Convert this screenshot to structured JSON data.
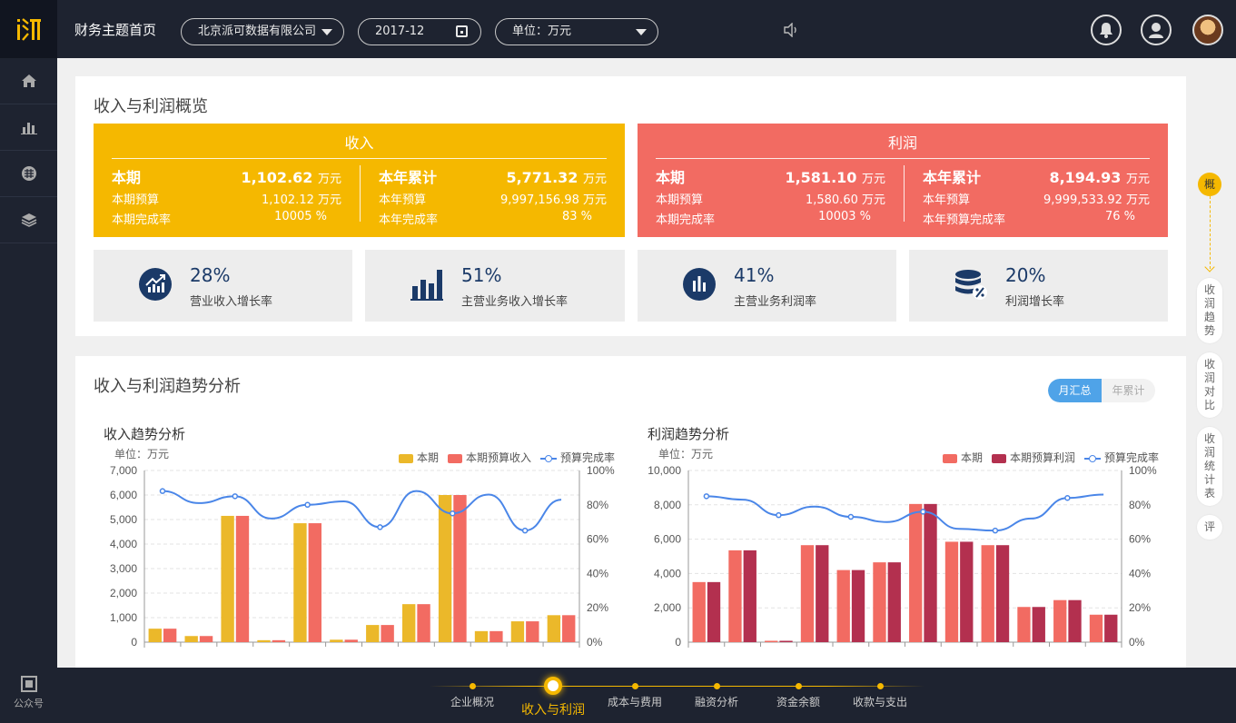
{
  "header": {
    "title": "财务主题首页",
    "company": "北京派可数据有限公司",
    "period": "2017-12",
    "unit": "单位：万元"
  },
  "sidebar": {
    "items": [
      "home-icon",
      "bar-chart-icon",
      "grid-icon",
      "layers-icon"
    ],
    "qr_label": "公众号"
  },
  "overview": {
    "title": "收入与利润概览",
    "income": {
      "head": "收入",
      "color": "#f5b800",
      "current_label": "本期",
      "current_value": "1,102.62",
      "unit": "万元",
      "budget_label": "本期预算",
      "budget_value": "1,102.12 万元",
      "rate_label": "本期完成率",
      "rate_value": "10005 %",
      "ytd_label": "本年累计",
      "ytd_value": "5,771.32",
      "ytd_budget_label": "本年预算",
      "ytd_budget_value": "9,997,156.98 万元",
      "ytd_rate_label": "本年完成率",
      "ytd_rate_value": "83 %"
    },
    "profit": {
      "head": "利润",
      "color": "#f26b62",
      "current_label": "本期",
      "current_value": "1,581.10",
      "unit": "万元",
      "budget_label": "本期预算",
      "budget_value": "1,580.60 万元",
      "rate_label": "本期完成率",
      "rate_value": "10003 %",
      "ytd_label": "本年累计",
      "ytd_value": "8,194.93",
      "ytd_budget_label": "本年预算",
      "ytd_budget_value": "9,999,533.92 万元",
      "ytd_rate_label": "本年预算完成率",
      "ytd_rate_value": "76 %"
    },
    "stats": [
      {
        "value": "28%",
        "label": "营业收入增长率",
        "icon": "trend-up-icon"
      },
      {
        "value": "51%",
        "label": "主营业务收入增长率",
        "icon": "bar-chart-icon"
      },
      {
        "value": "41%",
        "label": "主营业务利润率",
        "icon": "bar-circle-icon"
      },
      {
        "value": "20%",
        "label": "利润增长率",
        "icon": "coins-percent-icon"
      }
    ]
  },
  "trend": {
    "title": "收入与利润趋势分析",
    "toggle_on": "月汇总",
    "toggle_off": "年累计"
  },
  "chart_data": [
    {
      "type": "bar",
      "title": "收入趋势分析",
      "unit_label": "单位：万元",
      "ylim": [
        0,
        7000
      ],
      "y2lim": [
        0,
        100
      ],
      "yticks": [
        "0",
        "1,000",
        "2,000",
        "3,000",
        "4,000",
        "5,000",
        "6,000",
        "7,000"
      ],
      "y2ticks": [
        "0%",
        "20%",
        "40%",
        "60%",
        "80%",
        "100%"
      ],
      "colors": [
        "#ebb82a",
        "#f26b62",
        "#4a86e8"
      ],
      "series": [
        {
          "name": "本期",
          "values": [
            550,
            250,
            5150,
            80,
            4850,
            100,
            700,
            1550,
            6000,
            450,
            850,
            1100
          ]
        },
        {
          "name": "本期预算收入",
          "values": [
            550,
            250,
            5150,
            80,
            4850,
            100,
            700,
            1550,
            6000,
            450,
            850,
            1100
          ]
        },
        {
          "name": "预算完成率",
          "axis": "right",
          "values": [
            88,
            81,
            85,
            72,
            80,
            82,
            67,
            88,
            75,
            86,
            65,
            83
          ]
        }
      ]
    },
    {
      "type": "bar",
      "title": "利润趋势分析",
      "unit_label": "单位：万元",
      "ylim": [
        0,
        10000
      ],
      "y2lim": [
        0,
        100
      ],
      "yticks": [
        "0",
        "2,000",
        "4,000",
        "6,000",
        "8,000",
        "10,000"
      ],
      "y2ticks": [
        "0%",
        "20%",
        "40%",
        "60%",
        "80%",
        "100%"
      ],
      "colors": [
        "#f26b62",
        "#b3304f",
        "#4a86e8"
      ],
      "series": [
        {
          "name": "本期",
          "values": [
            3500,
            5350,
            80,
            5650,
            4200,
            4650,
            8050,
            5850,
            5650,
            2050,
            2450,
            1600
          ]
        },
        {
          "name": "本期预算利润",
          "values": [
            3500,
            5350,
            80,
            5650,
            4200,
            4650,
            8050,
            5850,
            5650,
            2050,
            2450,
            1600
          ]
        },
        {
          "name": "预算完成率",
          "axis": "right",
          "values": [
            85,
            83,
            74,
            79,
            73,
            70,
            76,
            66,
            65,
            72,
            84,
            86
          ]
        }
      ]
    }
  ],
  "rail": {
    "active": "概",
    "tabs": [
      "收润趋势",
      "收润对比",
      "收润统计表",
      "评"
    ]
  },
  "bottomnav": {
    "items": [
      "企业概况",
      "收入与利润",
      "成本与费用",
      "融资分析",
      "资金余额",
      "收款与支出"
    ],
    "active_index": 1
  }
}
